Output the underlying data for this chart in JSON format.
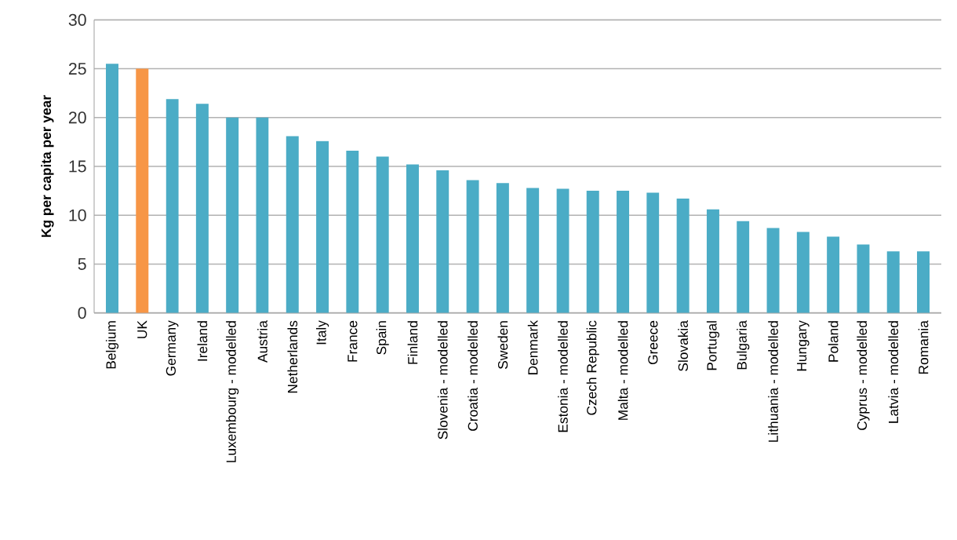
{
  "chart_data": {
    "type": "bar",
    "ylabel": "Kg per capita per year",
    "categories": [
      "Belgium",
      "UK",
      "Germany",
      "Ireland",
      "Luxembourg - modelled",
      "Austria",
      "Netherlands",
      "Italy",
      "France",
      "Spain",
      "Finland",
      "Slovenia - modelled",
      "Croatia - modelled",
      "Sweden",
      "Denmark",
      "Estonia - modelled",
      "Czech Republic",
      "Malta - modelled",
      "Greece",
      "Slovakia",
      "Portugal",
      "Bulgaria",
      "Lithuania - modelled",
      "Hungary",
      "Poland",
      "Cyprus - modelled",
      "Latvia - modelled",
      "Romania"
    ],
    "values": [
      25.5,
      25,
      21.9,
      21.4,
      20,
      20,
      18.1,
      17.6,
      16.6,
      16,
      15.2,
      14.6,
      13.6,
      13.3,
      12.8,
      12.7,
      12.5,
      12.5,
      12.3,
      11.7,
      10.6,
      9.4,
      8.7,
      8.3,
      7.8,
      7,
      6.3,
      6.3
    ],
    "colors": [
      "#4bacc6",
      "#f79646",
      "#4bacc6",
      "#4bacc6",
      "#4bacc6",
      "#4bacc6",
      "#4bacc6",
      "#4bacc6",
      "#4bacc6",
      "#4bacc6",
      "#4bacc6",
      "#4bacc6",
      "#4bacc6",
      "#4bacc6",
      "#4bacc6",
      "#4bacc6",
      "#4bacc6",
      "#4bacc6",
      "#4bacc6",
      "#4bacc6",
      "#4bacc6",
      "#4bacc6",
      "#4bacc6",
      "#4bacc6",
      "#4bacc6",
      "#4bacc6",
      "#4bacc6",
      "#4bacc6"
    ],
    "ylim": [
      0,
      30
    ],
    "yticks": [
      0,
      5,
      10,
      15,
      20,
      25,
      30
    ],
    "grid": "y"
  }
}
